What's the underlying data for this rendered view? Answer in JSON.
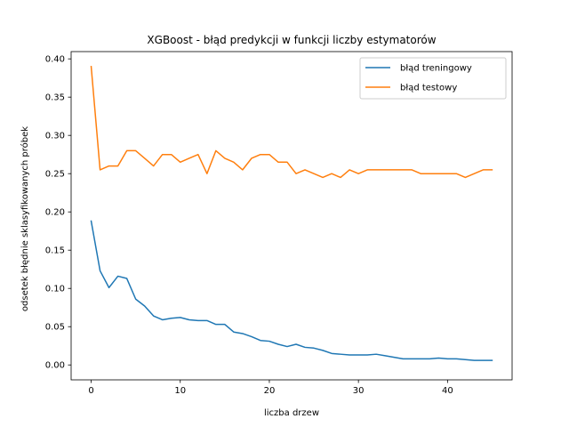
{
  "chart_data": {
    "type": "line",
    "title": "XGBoost - błąd predykcji w funkcji liczby estymatorów",
    "xlabel": "liczba drzew",
    "ylabel": "odsetek błędnie sklasyfikowanych próbek",
    "xlim": [
      -2.25,
      47.25
    ],
    "ylim": [
      -0.0195,
      0.4095
    ],
    "xticks": [
      0,
      10,
      20,
      30,
      40
    ],
    "xtick_labels": [
      "0",
      "10",
      "20",
      "30",
      "40"
    ],
    "yticks": [
      0.0,
      0.05,
      0.1,
      0.15,
      0.2,
      0.25,
      0.3,
      0.35,
      0.4
    ],
    "ytick_labels": [
      "0.00",
      "0.05",
      "0.10",
      "0.15",
      "0.20",
      "0.25",
      "0.30",
      "0.35",
      "0.40"
    ],
    "grid": false,
    "legend_position": "top-right",
    "x": [
      0,
      1,
      2,
      3,
      4,
      5,
      6,
      7,
      8,
      9,
      10,
      11,
      12,
      13,
      14,
      15,
      16,
      17,
      18,
      19,
      20,
      21,
      22,
      23,
      24,
      25,
      26,
      27,
      28,
      29,
      30,
      31,
      32,
      33,
      34,
      35,
      36,
      37,
      38,
      39,
      40,
      41,
      42,
      43,
      44,
      45
    ],
    "series": [
      {
        "name": "błąd treningowy",
        "color": "#1f77b4",
        "values": [
          0.188,
          0.123,
          0.101,
          0.116,
          0.113,
          0.086,
          0.077,
          0.064,
          0.059,
          0.061,
          0.062,
          0.059,
          0.058,
          0.058,
          0.053,
          0.053,
          0.043,
          0.041,
          0.037,
          0.032,
          0.031,
          0.027,
          0.024,
          0.027,
          0.023,
          0.022,
          0.019,
          0.015,
          0.014,
          0.013,
          0.013,
          0.013,
          0.014,
          0.012,
          0.01,
          0.008,
          0.008,
          0.008,
          0.008,
          0.009,
          0.008,
          0.008,
          0.007,
          0.006,
          0.006,
          0.006
        ]
      },
      {
        "name": "błąd testowy",
        "color": "#ff7f0e",
        "values": [
          0.39,
          0.255,
          0.26,
          0.26,
          0.28,
          0.28,
          0.27,
          0.26,
          0.275,
          0.275,
          0.265,
          0.27,
          0.275,
          0.25,
          0.28,
          0.27,
          0.265,
          0.255,
          0.27,
          0.275,
          0.275,
          0.265,
          0.265,
          0.25,
          0.255,
          0.25,
          0.245,
          0.25,
          0.245,
          0.255,
          0.25,
          0.255,
          0.255,
          0.255,
          0.255,
          0.255,
          0.255,
          0.25,
          0.25,
          0.25,
          0.25,
          0.25,
          0.245,
          0.25,
          0.255,
          0.255
        ]
      }
    ]
  }
}
